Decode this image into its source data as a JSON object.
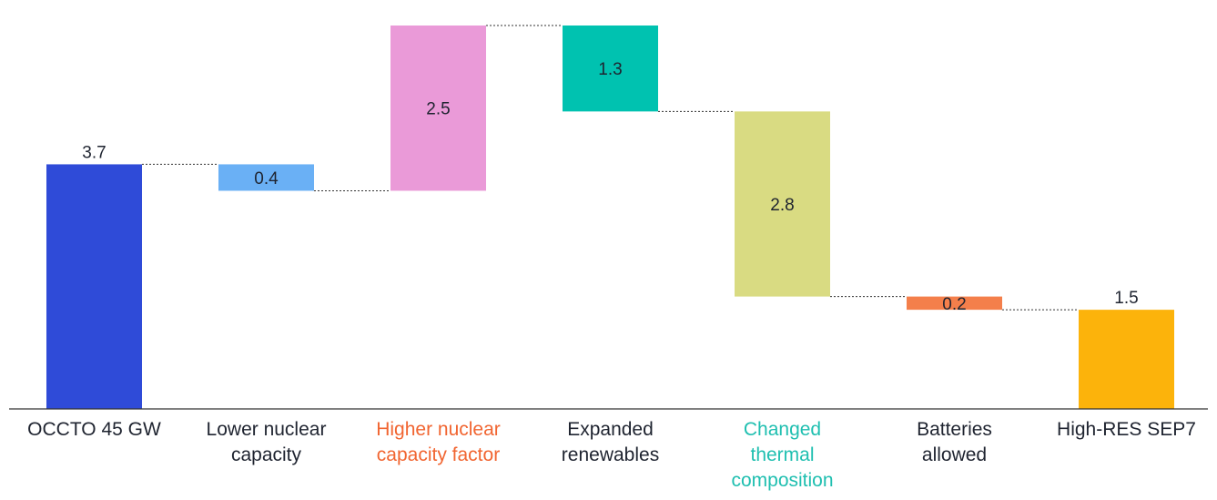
{
  "chart_data": {
    "type": "bar",
    "subtype": "waterfall",
    "title": "",
    "xlabel": "",
    "ylabel": "",
    "ylim": [
      0,
      5.8
    ],
    "grid": false,
    "categories": [
      [
        "OCCTO 45 GW"
      ],
      [
        "Lower nuclear",
        "capacity"
      ],
      [
        "Higher nuclear",
        "capacity factor"
      ],
      [
        "Expanded",
        "renewables"
      ],
      [
        "Changed",
        "thermal",
        "composition"
      ],
      [
        "Batteries",
        "allowed"
      ],
      [
        "High-RES SEP7"
      ]
    ],
    "steps": [
      {
        "kind": "total",
        "base": 0,
        "top": 3.7,
        "label": "3.7",
        "color": "#2f4bd8",
        "label_pos": "above"
      },
      {
        "kind": "delta",
        "base": 3.3,
        "top": 3.7,
        "label": "0.4",
        "color": "#6ab0f5",
        "label_pos": "inside"
      },
      {
        "kind": "delta",
        "base": 3.3,
        "top": 5.8,
        "label": "2.5",
        "color": "#ea9ad8",
        "label_pos": "inside"
      },
      {
        "kind": "delta",
        "base": 4.5,
        "top": 5.8,
        "label": "1.3",
        "color": "#00c2b0",
        "label_pos": "inside"
      },
      {
        "kind": "delta",
        "base": 1.7,
        "top": 4.5,
        "label": "2.8",
        "color": "#d9db82",
        "label_pos": "inside"
      },
      {
        "kind": "delta",
        "base": 1.5,
        "top": 1.7,
        "label": "0.2",
        "color": "#f47f4b",
        "label_pos": "inside"
      },
      {
        "kind": "total",
        "base": 0,
        "top": 1.5,
        "label": "1.5",
        "color": "#fcb30b",
        "label_pos": "above"
      }
    ],
    "label_colors": [
      "#1f2430",
      "#1f2430",
      "#f16531",
      "#1f2430",
      "#1fbfb0",
      "#1f2430",
      "#1f2430"
    ],
    "value_label_colors": [
      "#1f2430",
      "#1f2430",
      "#1f2430",
      "#ffffff",
      "#1f2430",
      "#1f2430",
      "#1f2430"
    ]
  }
}
